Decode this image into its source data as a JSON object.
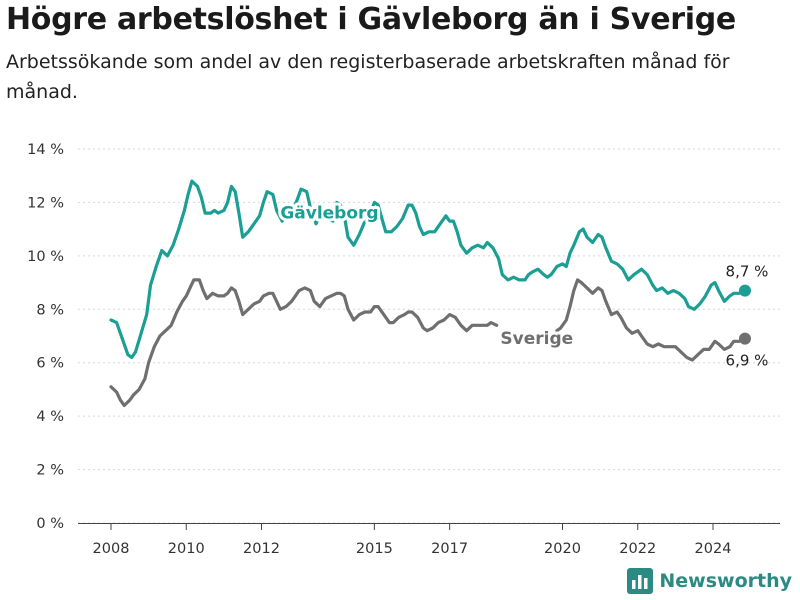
{
  "header": {
    "title": "Högre arbetslöshet i Gävleborg än i Sverige",
    "subtitle": "Arbetssökande som andel av den registerbaserade arbetskraften månad för månad."
  },
  "brand": {
    "name": "Newsworthy",
    "color": "#2b8b83",
    "icon": "newsworthy-logo-icon"
  },
  "chart_data": {
    "type": "line",
    "title": "Högre arbetslöshet i Gävleborg än i Sverige",
    "subtitle": "Arbetssökande som andel av den registerbaserade arbetskraften månad för månad.",
    "xlabel": "",
    "ylabel": "",
    "ylim": [
      0,
      14
    ],
    "xlim": [
      2007.6,
      2025.8
    ],
    "yticks": [
      {
        "value": 0,
        "label": "0 %"
      },
      {
        "value": 2,
        "label": "2 %"
      },
      {
        "value": 4,
        "label": "4 %"
      },
      {
        "value": 6,
        "label": "6 %"
      },
      {
        "value": 8,
        "label": "8 %"
      },
      {
        "value": 10,
        "label": "10 %"
      },
      {
        "value": 12,
        "label": "12 %"
      },
      {
        "value": 14,
        "label": "14 %"
      }
    ],
    "xticks": [
      {
        "value": 2008,
        "label": "2008"
      },
      {
        "value": 2010,
        "label": "2010"
      },
      {
        "value": 2012,
        "label": "2012"
      },
      {
        "value": 2015,
        "label": "2015"
      },
      {
        "value": 2017,
        "label": "2017"
      },
      {
        "value": 2020,
        "label": "2020"
      },
      {
        "value": 2022,
        "label": "2022"
      },
      {
        "value": 2024,
        "label": "2024"
      }
    ],
    "grid": true,
    "legend": "inline labels",
    "series": [
      {
        "name": "Gävleborg",
        "color": "#1b9e93",
        "label_anchor": {
          "x": 2012.5,
          "y": 11.4
        },
        "end_label": "8,7 %",
        "points": [
          [
            2008.0,
            7.6
          ],
          [
            2008.15,
            7.5
          ],
          [
            2008.3,
            6.9
          ],
          [
            2008.45,
            6.3
          ],
          [
            2008.55,
            6.2
          ],
          [
            2008.65,
            6.4
          ],
          [
            2008.8,
            7.1
          ],
          [
            2008.95,
            7.8
          ],
          [
            2009.05,
            8.9
          ],
          [
            2009.2,
            9.6
          ],
          [
            2009.35,
            10.2
          ],
          [
            2009.5,
            10.0
          ],
          [
            2009.65,
            10.4
          ],
          [
            2009.8,
            11.0
          ],
          [
            2009.95,
            11.7
          ],
          [
            2010.05,
            12.3
          ],
          [
            2010.15,
            12.8
          ],
          [
            2010.3,
            12.6
          ],
          [
            2010.4,
            12.2
          ],
          [
            2010.5,
            11.6
          ],
          [
            2010.65,
            11.6
          ],
          [
            2010.75,
            11.7
          ],
          [
            2010.85,
            11.6
          ],
          [
            2011.0,
            11.7
          ],
          [
            2011.1,
            12.0
          ],
          [
            2011.2,
            12.6
          ],
          [
            2011.3,
            12.4
          ],
          [
            2011.4,
            11.6
          ],
          [
            2011.5,
            10.7
          ],
          [
            2011.65,
            10.9
          ],
          [
            2011.8,
            11.2
          ],
          [
            2011.95,
            11.5
          ],
          [
            2012.05,
            12.0
          ],
          [
            2012.15,
            12.4
          ],
          [
            2012.3,
            12.3
          ],
          [
            2012.4,
            11.7
          ],
          [
            2012.55,
            11.3
          ],
          [
            2012.7,
            11.6
          ],
          [
            2012.8,
            11.6
          ],
          [
            2012.95,
            12.1
          ],
          [
            2013.05,
            12.5
          ],
          [
            2013.2,
            12.4
          ],
          [
            2013.3,
            11.8
          ],
          [
            2013.45,
            11.2
          ],
          [
            2013.6,
            11.7
          ],
          [
            2013.75,
            11.4
          ],
          [
            2013.9,
            11.3
          ],
          [
            2014.0,
            12.0
          ],
          [
            2014.1,
            11.9
          ],
          [
            2014.2,
            11.5
          ],
          [
            2014.3,
            10.7
          ],
          [
            2014.45,
            10.4
          ],
          [
            2014.6,
            10.8
          ],
          [
            2014.75,
            11.3
          ],
          [
            2014.9,
            11.6
          ],
          [
            2015.0,
            12.0
          ],
          [
            2015.1,
            11.9
          ],
          [
            2015.2,
            11.4
          ],
          [
            2015.3,
            10.9
          ],
          [
            2015.45,
            10.9
          ],
          [
            2015.6,
            11.1
          ],
          [
            2015.75,
            11.4
          ],
          [
            2015.9,
            11.9
          ],
          [
            2016.0,
            11.9
          ],
          [
            2016.1,
            11.6
          ],
          [
            2016.2,
            11.1
          ],
          [
            2016.3,
            10.8
          ],
          [
            2016.45,
            10.9
          ],
          [
            2016.6,
            10.9
          ],
          [
            2016.75,
            11.2
          ],
          [
            2016.9,
            11.5
          ],
          [
            2017.0,
            11.3
          ],
          [
            2017.1,
            11.3
          ],
          [
            2017.2,
            10.9
          ],
          [
            2017.3,
            10.4
          ],
          [
            2017.45,
            10.1
          ],
          [
            2017.6,
            10.3
          ],
          [
            2017.75,
            10.4
          ],
          [
            2017.9,
            10.3
          ],
          [
            2018.0,
            10.5
          ],
          [
            2018.15,
            10.3
          ],
          [
            2018.3,
            9.9
          ],
          [
            2018.4,
            9.3
          ],
          [
            2018.55,
            9.1
          ],
          [
            2018.7,
            9.2
          ],
          [
            2018.85,
            9.1
          ],
          [
            2019.0,
            9.1
          ],
          [
            2019.1,
            9.3
          ],
          [
            2019.2,
            9.4
          ],
          [
            2019.35,
            9.5
          ],
          [
            2019.5,
            9.3
          ],
          [
            2019.6,
            9.2
          ],
          [
            2019.7,
            9.3
          ],
          [
            2019.85,
            9.6
          ],
          [
            2020.0,
            9.7
          ],
          [
            2020.1,
            9.6
          ],
          [
            2020.2,
            10.1
          ],
          [
            2020.3,
            10.4
          ],
          [
            2020.45,
            10.9
          ],
          [
            2020.55,
            11.0
          ],
          [
            2020.65,
            10.7
          ],
          [
            2020.8,
            10.5
          ],
          [
            2020.95,
            10.8
          ],
          [
            2021.05,
            10.7
          ],
          [
            2021.15,
            10.3
          ],
          [
            2021.3,
            9.8
          ],
          [
            2021.45,
            9.7
          ],
          [
            2021.6,
            9.5
          ],
          [
            2021.75,
            9.1
          ],
          [
            2021.9,
            9.3
          ],
          [
            2022.0,
            9.4
          ],
          [
            2022.1,
            9.5
          ],
          [
            2022.25,
            9.3
          ],
          [
            2022.4,
            8.9
          ],
          [
            2022.5,
            8.7
          ],
          [
            2022.65,
            8.8
          ],
          [
            2022.8,
            8.6
          ],
          [
            2022.95,
            8.7
          ],
          [
            2023.1,
            8.6
          ],
          [
            2023.25,
            8.4
          ],
          [
            2023.35,
            8.1
          ],
          [
            2023.5,
            8.0
          ],
          [
            2023.65,
            8.2
          ],
          [
            2023.8,
            8.5
          ],
          [
            2023.95,
            8.9
          ],
          [
            2024.05,
            9.0
          ],
          [
            2024.15,
            8.7
          ],
          [
            2024.3,
            8.3
          ],
          [
            2024.45,
            8.5
          ],
          [
            2024.55,
            8.6
          ],
          [
            2024.7,
            8.6
          ],
          [
            2024.85,
            8.7
          ]
        ]
      },
      {
        "name": "Sverige",
        "color": "#6f6f6f",
        "label_anchor": {
          "x": 2018.35,
          "y": 6.7
        },
        "end_label": "6,9 %",
        "points": [
          [
            2008.0,
            5.1
          ],
          [
            2008.15,
            4.9
          ],
          [
            2008.25,
            4.6
          ],
          [
            2008.35,
            4.4
          ],
          [
            2008.5,
            4.6
          ],
          [
            2008.6,
            4.8
          ],
          [
            2008.75,
            5.0
          ],
          [
            2008.9,
            5.4
          ],
          [
            2009.0,
            6.0
          ],
          [
            2009.15,
            6.6
          ],
          [
            2009.3,
            7.0
          ],
          [
            2009.45,
            7.2
          ],
          [
            2009.6,
            7.4
          ],
          [
            2009.75,
            7.9
          ],
          [
            2009.9,
            8.3
          ],
          [
            2010.0,
            8.5
          ],
          [
            2010.1,
            8.8
          ],
          [
            2010.2,
            9.1
          ],
          [
            2010.35,
            9.1
          ],
          [
            2010.45,
            8.7
          ],
          [
            2010.55,
            8.4
          ],
          [
            2010.7,
            8.6
          ],
          [
            2010.85,
            8.5
          ],
          [
            2011.0,
            8.5
          ],
          [
            2011.1,
            8.6
          ],
          [
            2011.2,
            8.8
          ],
          [
            2011.3,
            8.7
          ],
          [
            2011.4,
            8.3
          ],
          [
            2011.5,
            7.8
          ],
          [
            2011.65,
            8.0
          ],
          [
            2011.8,
            8.2
          ],
          [
            2011.95,
            8.3
          ],
          [
            2012.05,
            8.5
          ],
          [
            2012.2,
            8.6
          ],
          [
            2012.3,
            8.6
          ],
          [
            2012.4,
            8.3
          ],
          [
            2012.5,
            8.0
          ],
          [
            2012.65,
            8.1
          ],
          [
            2012.8,
            8.3
          ],
          [
            2012.9,
            8.5
          ],
          [
            2013.0,
            8.7
          ],
          [
            2013.15,
            8.8
          ],
          [
            2013.3,
            8.7
          ],
          [
            2013.4,
            8.3
          ],
          [
            2013.55,
            8.1
          ],
          [
            2013.7,
            8.4
          ],
          [
            2013.85,
            8.5
          ],
          [
            2014.0,
            8.6
          ],
          [
            2014.1,
            8.6
          ],
          [
            2014.2,
            8.5
          ],
          [
            2014.3,
            8.0
          ],
          [
            2014.45,
            7.6
          ],
          [
            2014.6,
            7.8
          ],
          [
            2014.75,
            7.9
          ],
          [
            2014.9,
            7.9
          ],
          [
            2015.0,
            8.1
          ],
          [
            2015.1,
            8.1
          ],
          [
            2015.25,
            7.8
          ],
          [
            2015.4,
            7.5
          ],
          [
            2015.5,
            7.5
          ],
          [
            2015.65,
            7.7
          ],
          [
            2015.8,
            7.8
          ],
          [
            2015.9,
            7.9
          ],
          [
            2016.0,
            7.9
          ],
          [
            2016.15,
            7.7
          ],
          [
            2016.3,
            7.3
          ],
          [
            2016.4,
            7.2
          ],
          [
            2016.55,
            7.3
          ],
          [
            2016.7,
            7.5
          ],
          [
            2016.85,
            7.6
          ],
          [
            2017.0,
            7.8
          ],
          [
            2017.15,
            7.7
          ],
          [
            2017.3,
            7.4
          ],
          [
            2017.45,
            7.2
          ],
          [
            2017.6,
            7.4
          ],
          [
            2017.75,
            7.4
          ],
          [
            2017.9,
            7.4
          ],
          [
            2018.0,
            7.4
          ],
          [
            2018.1,
            7.5
          ],
          [
            2018.25,
            7.4
          ]
        ],
        "points_after_label": [
          [
            2019.85,
            7.2
          ],
          [
            2019.95,
            7.3
          ],
          [
            2020.0,
            7.4
          ],
          [
            2020.1,
            7.6
          ],
          [
            2020.2,
            8.1
          ],
          [
            2020.3,
            8.7
          ],
          [
            2020.4,
            9.1
          ],
          [
            2020.5,
            9.0
          ],
          [
            2020.65,
            8.8
          ],
          [
            2020.8,
            8.6
          ],
          [
            2020.95,
            8.8
          ],
          [
            2021.05,
            8.7
          ],
          [
            2021.15,
            8.3
          ],
          [
            2021.3,
            7.8
          ],
          [
            2021.45,
            7.9
          ],
          [
            2021.55,
            7.7
          ],
          [
            2021.7,
            7.3
          ],
          [
            2021.85,
            7.1
          ],
          [
            2022.0,
            7.2
          ],
          [
            2022.1,
            7.0
          ],
          [
            2022.25,
            6.7
          ],
          [
            2022.4,
            6.6
          ],
          [
            2022.55,
            6.7
          ],
          [
            2022.7,
            6.6
          ],
          [
            2022.85,
            6.6
          ],
          [
            2023.0,
            6.6
          ],
          [
            2023.15,
            6.4
          ],
          [
            2023.3,
            6.2
          ],
          [
            2023.45,
            6.1
          ],
          [
            2023.6,
            6.3
          ],
          [
            2023.75,
            6.5
          ],
          [
            2023.9,
            6.5
          ],
          [
            2024.05,
            6.8
          ],
          [
            2024.15,
            6.7
          ],
          [
            2024.3,
            6.5
          ],
          [
            2024.45,
            6.6
          ],
          [
            2024.55,
            6.8
          ],
          [
            2024.7,
            6.8
          ],
          [
            2024.85,
            6.9
          ]
        ]
      }
    ]
  }
}
